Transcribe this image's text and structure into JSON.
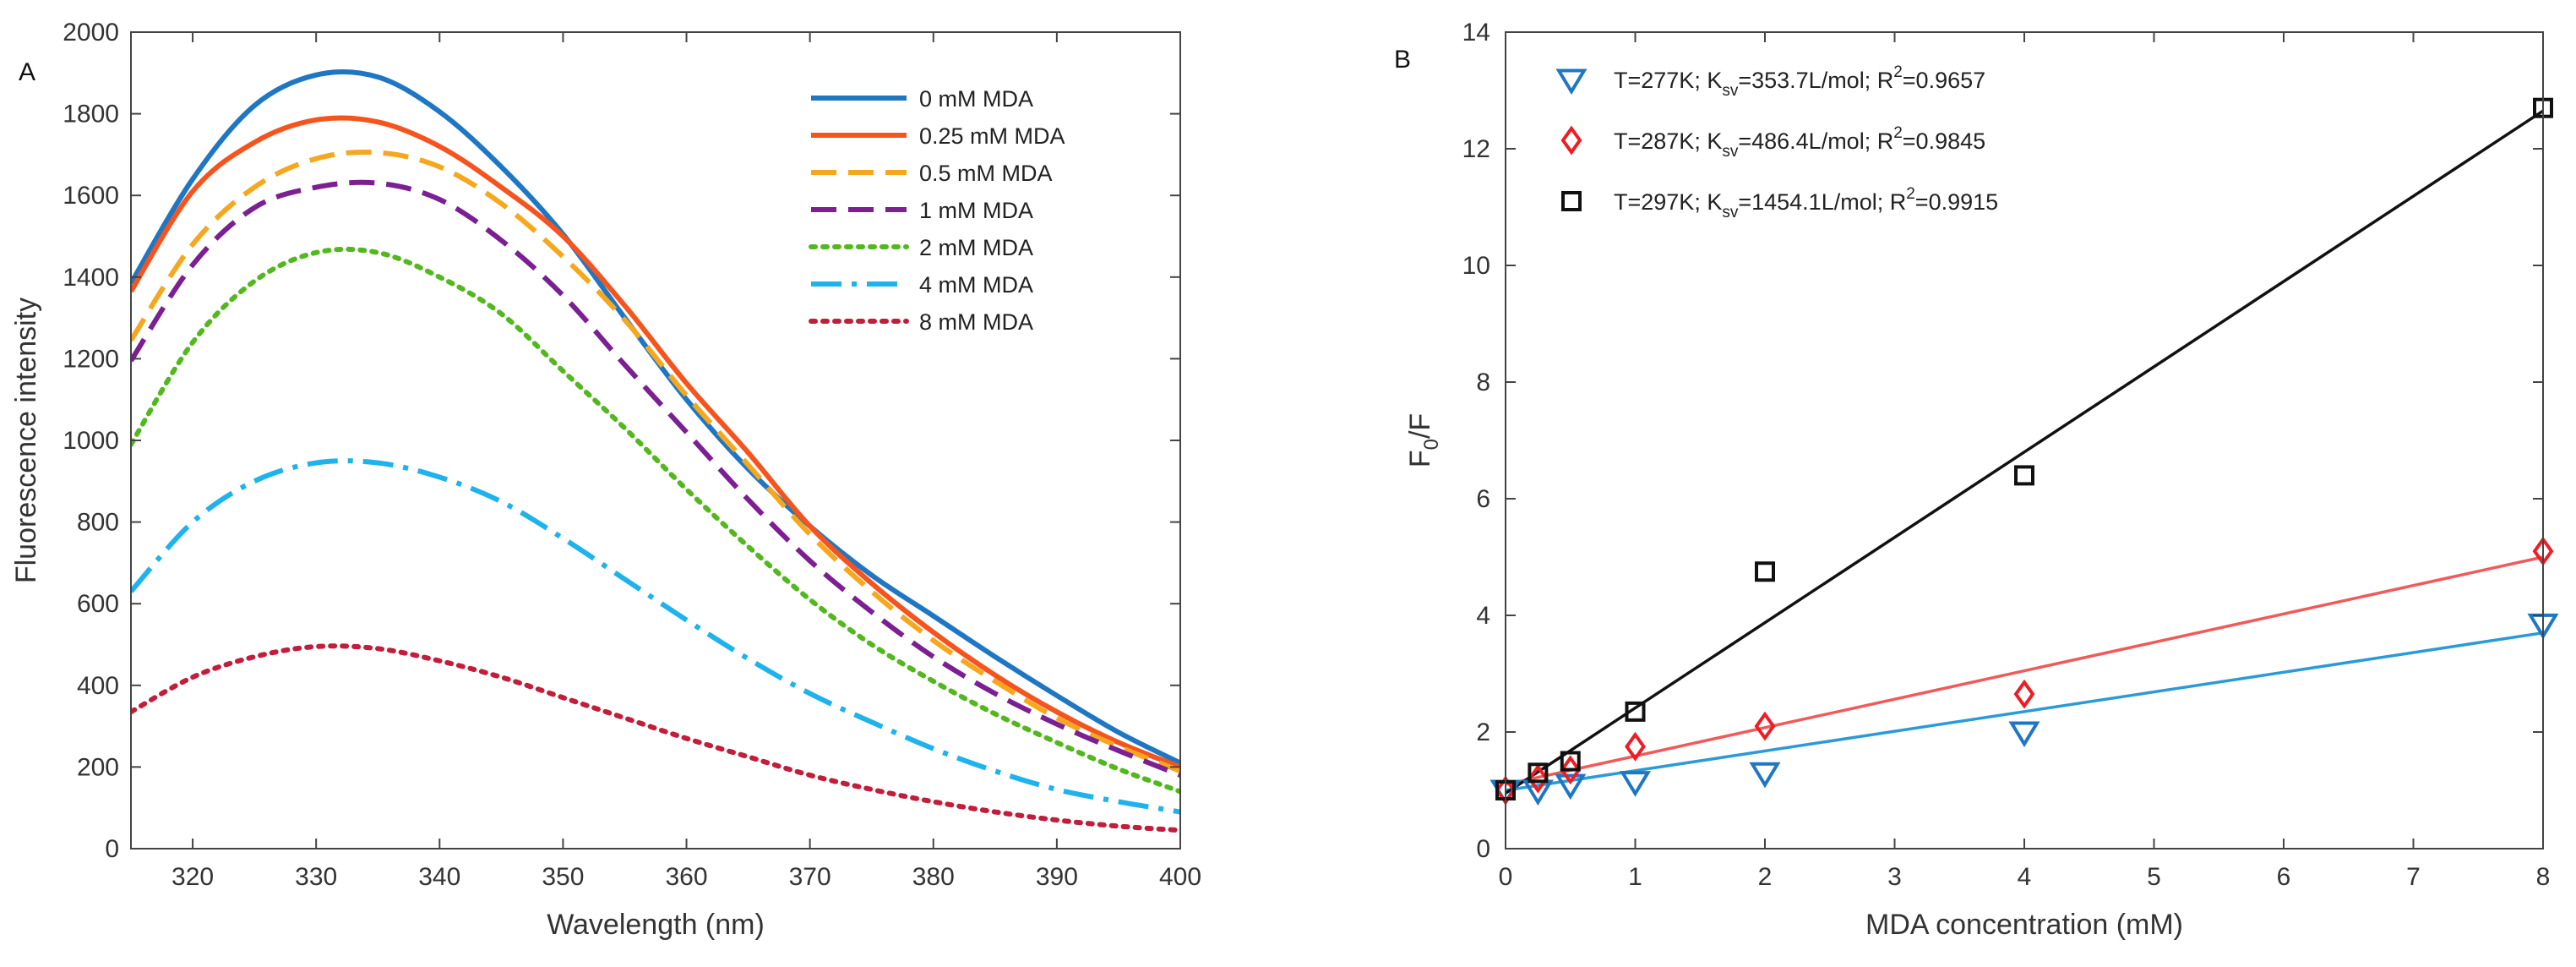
{
  "colors": {
    "blue": "#1f77c4",
    "orange": "#f5541e",
    "yellow": "#f5a81e",
    "purple": "#7b1f92",
    "green": "#52b81d",
    "cyan": "#1eb3ec",
    "crimson": "#c21d3a",
    "red": "#ee1d24",
    "black": "#111111",
    "lineBlue": "#2b9ad6",
    "lineRed": "#f05a5a"
  },
  "chart_data": [
    {
      "panel": "A",
      "type": "line",
      "xlabel": "Wavelength (nm)",
      "ylabel": "Fluorescence intensity",
      "xlim": [
        315,
        400
      ],
      "ylim": [
        0,
        2000
      ],
      "xticks": [
        320,
        330,
        340,
        350,
        360,
        370,
        380,
        390,
        400
      ],
      "yticks": [
        0,
        200,
        400,
        600,
        800,
        1000,
        1200,
        1400,
        1600,
        1800,
        2000
      ],
      "x": [
        315,
        320,
        325,
        330,
        335,
        340,
        345,
        350,
        355,
        360,
        365,
        370,
        375,
        380,
        385,
        390,
        395,
        400
      ],
      "series": [
        {
          "name": "0 mM MDA",
          "style": "solid",
          "color": "blue",
          "values": [
            1385,
            1640,
            1820,
            1895,
            1890,
            1805,
            1670,
            1505,
            1300,
            1100,
            930,
            790,
            670,
            570,
            470,
            375,
            285,
            210
          ]
        },
        {
          "name": "0.25 mM MDA",
          "style": "solid",
          "color": "orange",
          "values": [
            1365,
            1610,
            1730,
            1785,
            1780,
            1720,
            1620,
            1500,
            1330,
            1140,
            970,
            790,
            650,
            530,
            425,
            335,
            260,
            200
          ]
        },
        {
          "name": "0.5 mM MDA",
          "style": "dashed",
          "color": "yellow",
          "values": [
            1245,
            1480,
            1620,
            1690,
            1705,
            1670,
            1580,
            1450,
            1295,
            1110,
            940,
            770,
            630,
            510,
            410,
            320,
            250,
            190
          ]
        },
        {
          "name": "1 mM MDA",
          "style": "dashed",
          "color": "purple",
          "values": [
            1195,
            1430,
            1570,
            1620,
            1630,
            1590,
            1490,
            1355,
            1185,
            1020,
            855,
            705,
            580,
            470,
            380,
            305,
            240,
            180
          ]
        },
        {
          "name": "2 mM MDA",
          "style": "dotted",
          "color": "green",
          "values": [
            990,
            1240,
            1390,
            1460,
            1460,
            1400,
            1310,
            1170,
            1030,
            880,
            740,
            610,
            500,
            410,
            330,
            260,
            195,
            140
          ]
        },
        {
          "name": "4 mM MDA",
          "style": "dashdot",
          "color": "cyan",
          "values": [
            630,
            800,
            900,
            945,
            945,
            910,
            850,
            760,
            660,
            560,
            465,
            380,
            310,
            245,
            190,
            145,
            115,
            90
          ]
        },
        {
          "name": "8 mM MDA",
          "style": "dotted",
          "color": "crimson",
          "values": [
            335,
            420,
            470,
            495,
            490,
            460,
            420,
            370,
            320,
            270,
            225,
            180,
            145,
            115,
            90,
            70,
            55,
            45
          ]
        }
      ]
    },
    {
      "panel": "B",
      "type": "scatter",
      "xlabel": "MDA concentration (mM)",
      "ylabel": {
        "main": "F",
        "sub": "0",
        "rest": "/F"
      },
      "xlim": [
        0,
        8
      ],
      "ylim": [
        0,
        14
      ],
      "xticks": [
        0,
        1,
        2,
        3,
        4,
        5,
        6,
        7,
        8
      ],
      "yticks": [
        0,
        2,
        4,
        6,
        8,
        10,
        12,
        14
      ],
      "series": [
        {
          "T": "T=277K; K",
          "sub": "sv",
          "mid": "=353.7L/mol; R",
          "sup": "2",
          "end": "=0.9657",
          "marker": "triangle-down",
          "color": "blue",
          "lineColor": "lineBlue",
          "x": [
            0,
            0.25,
            0.5,
            1,
            2,
            4,
            8
          ],
          "y": [
            1.0,
            1.0,
            1.1,
            1.15,
            1.3,
            2.0,
            3.85
          ],
          "fit": [
            [
              0,
              1.0
            ],
            [
              8,
              3.7
            ]
          ]
        },
        {
          "T": "T=287K; K",
          "sub": "sv",
          "mid": "=486.4L/mol; R",
          "sup": "2",
          "end": "=0.9845",
          "marker": "diamond",
          "color": "red",
          "lineColor": "lineRed",
          "x": [
            0,
            0.25,
            0.5,
            1,
            2,
            4,
            8
          ],
          "y": [
            1.0,
            1.2,
            1.35,
            1.75,
            2.1,
            2.65,
            5.1
          ],
          "fit": [
            [
              0,
              1.1
            ],
            [
              8,
              5.0
            ]
          ]
        },
        {
          "T": "T=297K; K",
          "sub": "sv",
          "mid": "=1454.1L/mol; R",
          "sup": "2",
          "end": "=0.9915",
          "marker": "square",
          "color": "black",
          "lineColor": "black",
          "x": [
            0,
            0.25,
            0.5,
            1,
            2,
            4,
            8
          ],
          "y": [
            1.0,
            1.3,
            1.5,
            2.35,
            4.75,
            6.4,
            12.7
          ],
          "fit": [
            [
              0,
              0.95
            ],
            [
              8,
              12.65
            ]
          ]
        }
      ]
    }
  ]
}
